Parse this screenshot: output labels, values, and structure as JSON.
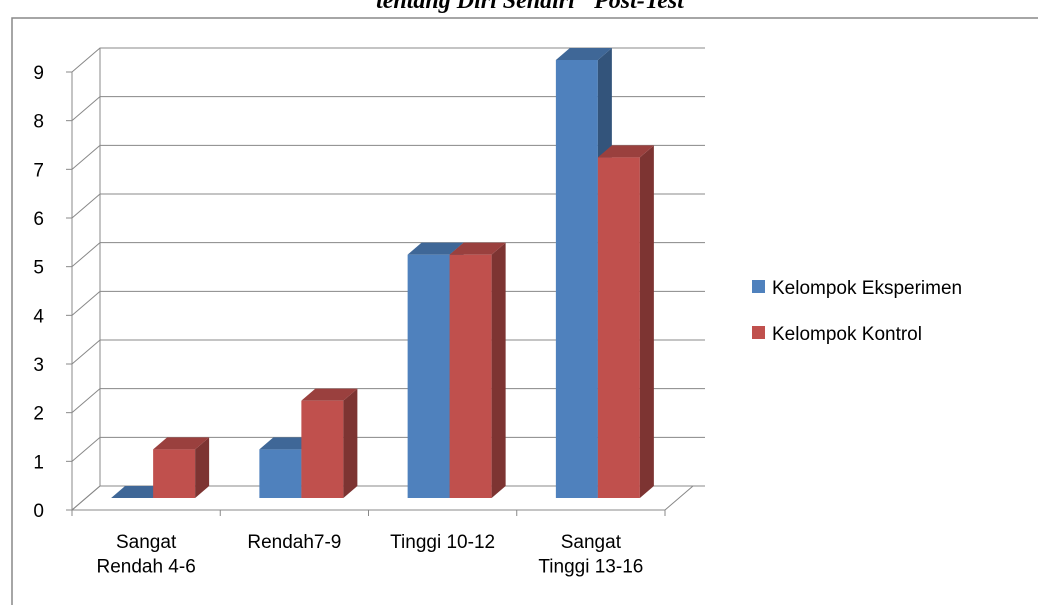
{
  "chart_data": {
    "type": "bar3d",
    "title": "tentang Diri Sendiri\" Post-Test",
    "categories": [
      "Sangat\nRendah 4-6",
      "Rendah7-9",
      "Tinggi 10-12",
      "Sangat\nTinggi 13-16"
    ],
    "series": [
      {
        "name": "Kelompok Eksperimen",
        "color": "#4f81bd",
        "values": [
          0,
          1,
          5,
          9
        ]
      },
      {
        "name": "Kelompok Kontrol",
        "color": "#c0504d",
        "values": [
          1,
          2,
          5,
          7
        ]
      }
    ],
    "ylim": [
      0,
      9
    ],
    "yticks": [
      0,
      1,
      2,
      3,
      4,
      5,
      6,
      7,
      8,
      9
    ],
    "grid": true,
    "legend": "right"
  }
}
